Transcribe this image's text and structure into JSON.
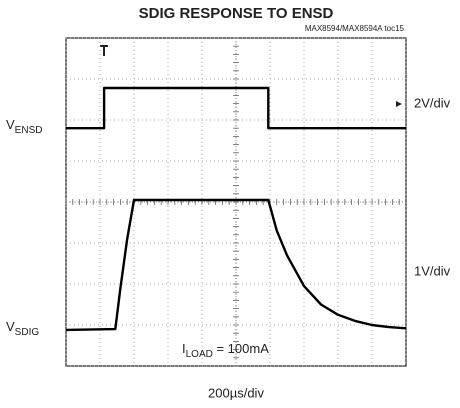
{
  "chart_data": {
    "type": "line",
    "title": "SDIG RESPONSE TO ENSD",
    "subtitle": "MAX8594/MAX8594A toc15",
    "xlim": [
      0,
      10
    ],
    "ylim": [
      0,
      8
    ],
    "xticks": [
      0,
      1,
      2,
      3,
      4,
      5,
      6,
      7,
      8,
      9,
      10
    ],
    "yticks": [
      0,
      1,
      2,
      3,
      4,
      5,
      6,
      7,
      8
    ],
    "grid": true,
    "x_label": "200µs/div",
    "annotation": {
      "main": "I",
      "sub": "LOAD",
      "rest": " = 100mA"
    },
    "series": [
      {
        "name": {
          "main": "V",
          "sub": "ENSD"
        },
        "scale": "2V/div",
        "color": "#000000",
        "x": [
          0,
          1.12,
          1.12,
          5.95,
          5.95,
          10
        ],
        "values": [
          5.8,
          5.8,
          6.78,
          6.78,
          5.8,
          5.8
        ]
      },
      {
        "name": {
          "main": "V",
          "sub": "SDIG"
        },
        "scale": "1V/div",
        "color": "#000000",
        "x": [
          0,
          1.45,
          1.6,
          1.8,
          2.0,
          5.95,
          6.2,
          6.5,
          7,
          7.5,
          8,
          8.5,
          9,
          9.5,
          10
        ],
        "values": [
          0.88,
          0.9,
          1.9,
          3.1,
          4.05,
          4.05,
          3.3,
          2.7,
          1.95,
          1.5,
          1.25,
          1.1,
          1.0,
          0.95,
          0.92
        ]
      }
    ]
  }
}
